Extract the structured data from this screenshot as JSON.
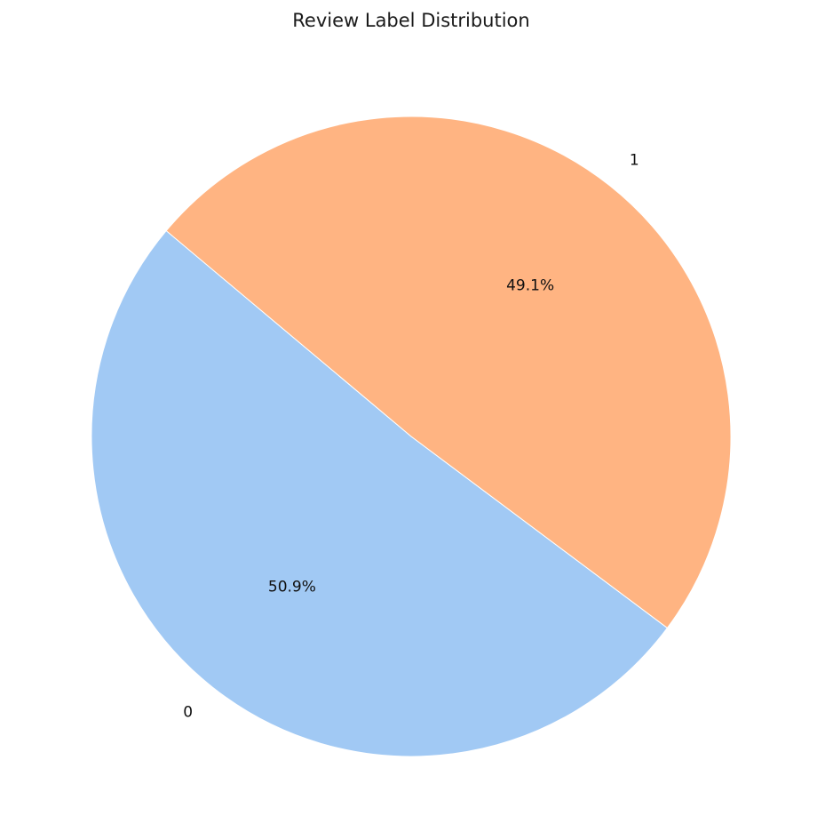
{
  "chart_data": {
    "type": "pie",
    "title": "Review Label Distribution",
    "labels": [
      "0",
      "1"
    ],
    "values": [
      50.9,
      49.1
    ],
    "autopct_labels": [
      "50.9%",
      "49.1%"
    ],
    "colors": [
      "#a1c9f4",
      "#ffb482"
    ],
    "start_angle_deg": 140,
    "direction": "counterclockwise",
    "legend": "none"
  }
}
